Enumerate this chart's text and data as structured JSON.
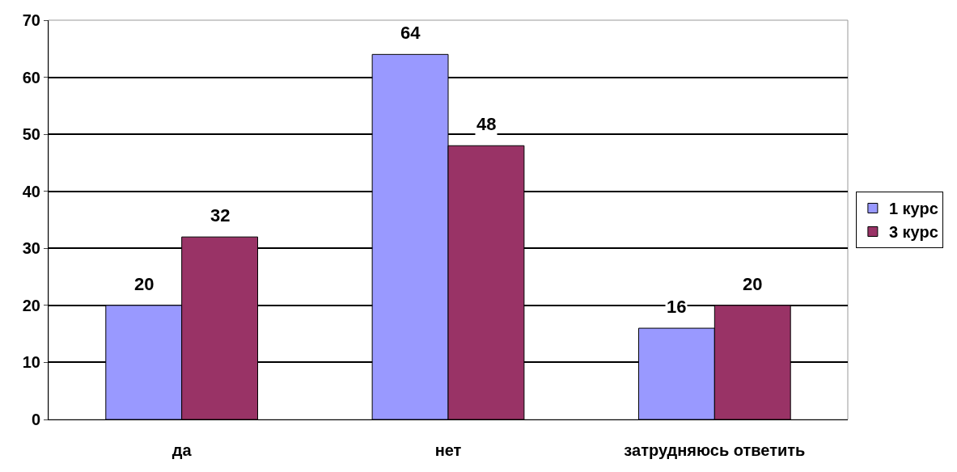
{
  "chart_data": {
    "type": "bar",
    "categories": [
      "да",
      "нет",
      "затрудняюсь ответить"
    ],
    "series": [
      {
        "name": "1 курс",
        "color": "#9999ff",
        "values": [
          20,
          64,
          16
        ]
      },
      {
        "name": "3 курс",
        "color": "#993366",
        "values": [
          32,
          48,
          20
        ]
      }
    ],
    "ylim": [
      0,
      70
    ],
    "yticks": [
      0,
      10,
      20,
      30,
      40,
      50,
      60,
      70
    ],
    "grid": "y",
    "legend": "right",
    "data_labels": true
  }
}
